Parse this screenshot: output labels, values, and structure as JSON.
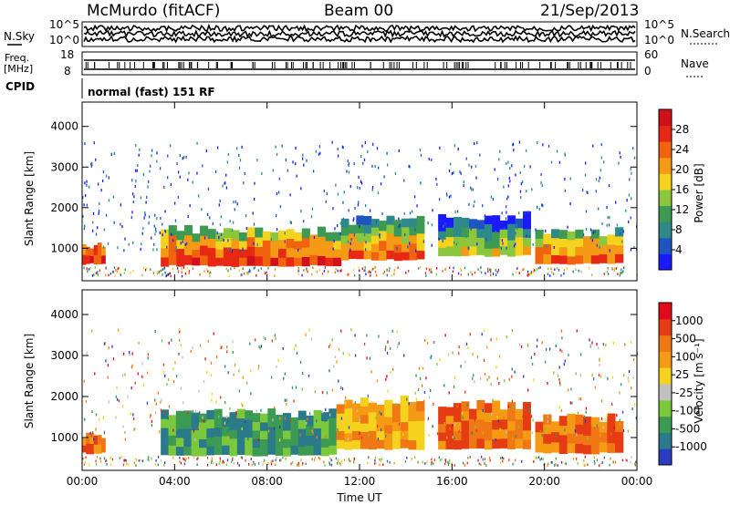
{
  "header": {
    "title": "McMurdo (fitACF)",
    "beam": "Beam 00",
    "date": "21/Sep/2013"
  },
  "noise_panel": {
    "left_label": "N.Sky",
    "right_label": "N.Search",
    "left_ticks": [
      "10^5",
      "10^0"
    ],
    "right_ticks": [
      "10^5",
      "10^0"
    ]
  },
  "freq_panel": {
    "left_label_line1": "Freq.",
    "left_label_line2": "[MHz]",
    "left_ticks": [
      "18",
      "8"
    ],
    "right_label": "Nave",
    "right_ticks": [
      "60",
      "0"
    ]
  },
  "cpid_panel": {
    "label": "CPID",
    "text": "normal (fast) 151 RF"
  },
  "chart_data": [
    {
      "type": "heatmap",
      "name": "power",
      "ylabel": "Slant Range [km]",
      "ylim": [
        200,
        4600
      ],
      "yticks": [
        1000,
        2000,
        3000,
        4000
      ],
      "xlim": [
        0,
        24
      ],
      "xticks": [
        "00:00",
        "04:00",
        "08:00",
        "12:00",
        "16:00",
        "20:00",
        "00:00"
      ],
      "colorbar": {
        "label": "Power [dB]",
        "ticks": [
          "4",
          "8",
          "12",
          "16",
          "20",
          "24",
          "28"
        ],
        "colors": [
          "#1a1aff",
          "#1f55c0",
          "#2e8a8a",
          "#3c9a52",
          "#8cc63c",
          "#f5d21e",
          "#f59a14",
          "#f06410",
          "#e62814",
          "#d0101a"
        ]
      },
      "echo_regions": [
        {
          "t_start": 0.0,
          "t_end": 1.0,
          "r_min": 600,
          "r_max": 1100,
          "level": 8
        },
        {
          "t_start": 3.4,
          "t_end": 11.2,
          "r_min": 550,
          "r_max": 1450,
          "level": 8
        },
        {
          "t_start": 11.2,
          "t_end": 14.8,
          "r_min": 700,
          "r_max": 1700,
          "level": 7
        },
        {
          "t_start": 15.4,
          "t_end": 19.4,
          "r_min": 800,
          "r_max": 1800,
          "level": 5
        },
        {
          "t_start": 19.6,
          "t_end": 23.4,
          "r_min": 600,
          "r_max": 1400,
          "level": 7
        }
      ]
    },
    {
      "type": "heatmap",
      "name": "velocity",
      "ylabel": "Slant Range [km]",
      "ylim": [
        200,
        4600
      ],
      "yticks": [
        1000,
        2000,
        3000,
        4000
      ],
      "xlim": [
        0,
        24
      ],
      "xticks": [
        "00:00",
        "04:00",
        "08:00",
        "12:00",
        "16:00",
        "20:00",
        "00:00"
      ],
      "xlabel": "Time UT",
      "colorbar": {
        "label": "Velocity [m s⁻¹]",
        "ticks": [
          "1000",
          "500",
          "100",
          "25",
          "-25",
          "-100",
          "-500",
          "-1000"
        ],
        "colors": [
          "#2a3cc0",
          "#2a7a8a",
          "#3c9a52",
          "#7cc83c",
          "#c0c0c0",
          "#f5d21e",
          "#f59a14",
          "#f07814",
          "#e63c14",
          "#e00a1a"
        ]
      },
      "echo_regions": [
        {
          "t_start": 0.0,
          "t_end": 1.0,
          "r_min": 600,
          "r_max": 1100,
          "level": 7
        },
        {
          "t_start": 3.4,
          "t_end": 11.0,
          "r_min": 550,
          "r_max": 1600,
          "level": 2
        },
        {
          "t_start": 11.0,
          "t_end": 14.8,
          "r_min": 700,
          "r_max": 1900,
          "level": 6
        },
        {
          "t_start": 15.4,
          "t_end": 19.4,
          "r_min": 700,
          "r_max": 1800,
          "level": 7
        },
        {
          "t_start": 19.6,
          "t_end": 23.4,
          "r_min": 600,
          "r_max": 1500,
          "level": 7
        }
      ]
    }
  ]
}
